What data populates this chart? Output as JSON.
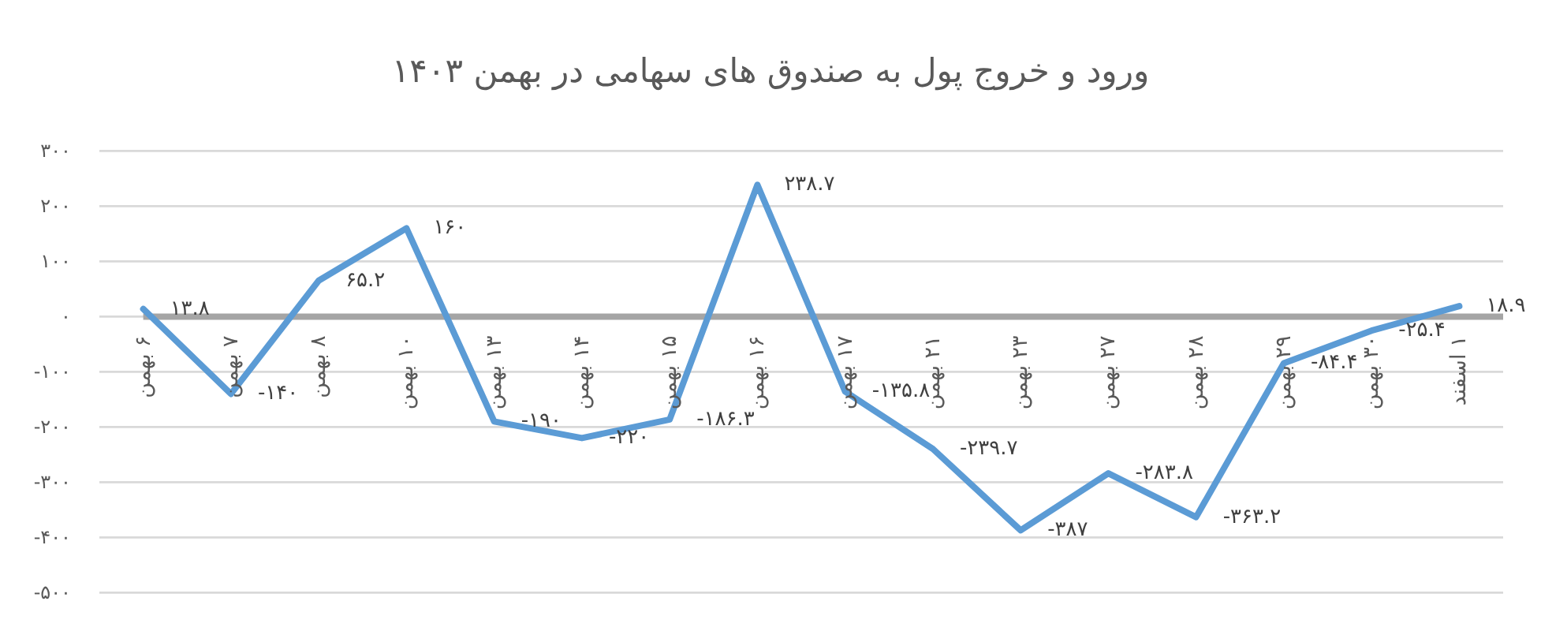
{
  "chart_data": {
    "type": "line",
    "title": "ورود و خروج پول به صندوق های سهامی در بهمن ۱۴۰۳",
    "categories": [
      "۶ بهمن",
      "۷ بهمن",
      "۸ بهمن",
      "۱۰ بهمن",
      "۱۳ بهمن",
      "۱۴ بهمن",
      "۱۵ بهمن",
      "۱۶ بهمن",
      "۱۷ بهمن",
      "۲۱ بهمن",
      "۲۳ بهمن",
      "۲۷ بهمن",
      "۲۸ بهمن",
      "۲۹ بهمن",
      "۳۰ بهمن",
      "۱ اسفند"
    ],
    "series": [
      {
        "color": "#5b9bd5",
        "values": [
          13.8,
          -140,
          65.2,
          160,
          -190,
          -220,
          -186.3,
          238.7,
          -135.8,
          -239.7,
          -387,
          -283.8,
          -363.2,
          -84.4,
          -25.4,
          18.9
        ],
        "value_labels": [
          "۱۳.۸",
          "-۱۴۰",
          "۶۵.۲",
          "۱۶۰",
          "-۱۹۰",
          "-۲۲۰",
          "-۱۸۶.۳",
          "۲۳۸.۷",
          "-۱۳۵.۸",
          "-۲۳۹.۷",
          "-۳۸۷",
          "-۲۸۳.۸",
          "-۳۶۳.۲",
          "-۸۴.۴",
          "-۲۵.۴",
          "۱۸.۹"
        ]
      }
    ],
    "ylim": [
      -500,
      300
    ],
    "yticks": [
      {
        "value": -500,
        "label": "-۵۰۰"
      },
      {
        "value": -400,
        "label": "-۴۰۰"
      },
      {
        "value": -300,
        "label": "-۳۰۰"
      },
      {
        "value": -200,
        "label": "-۲۰۰"
      },
      {
        "value": -100,
        "label": "-۱۰۰"
      },
      {
        "value": 0,
        "label": "۰"
      },
      {
        "value": 100,
        "label": "۱۰۰"
      },
      {
        "value": 200,
        "label": "۲۰۰"
      },
      {
        "value": 300,
        "label": "۳۰۰"
      }
    ],
    "grid": "y",
    "marker": "none",
    "line_style": "solid"
  }
}
